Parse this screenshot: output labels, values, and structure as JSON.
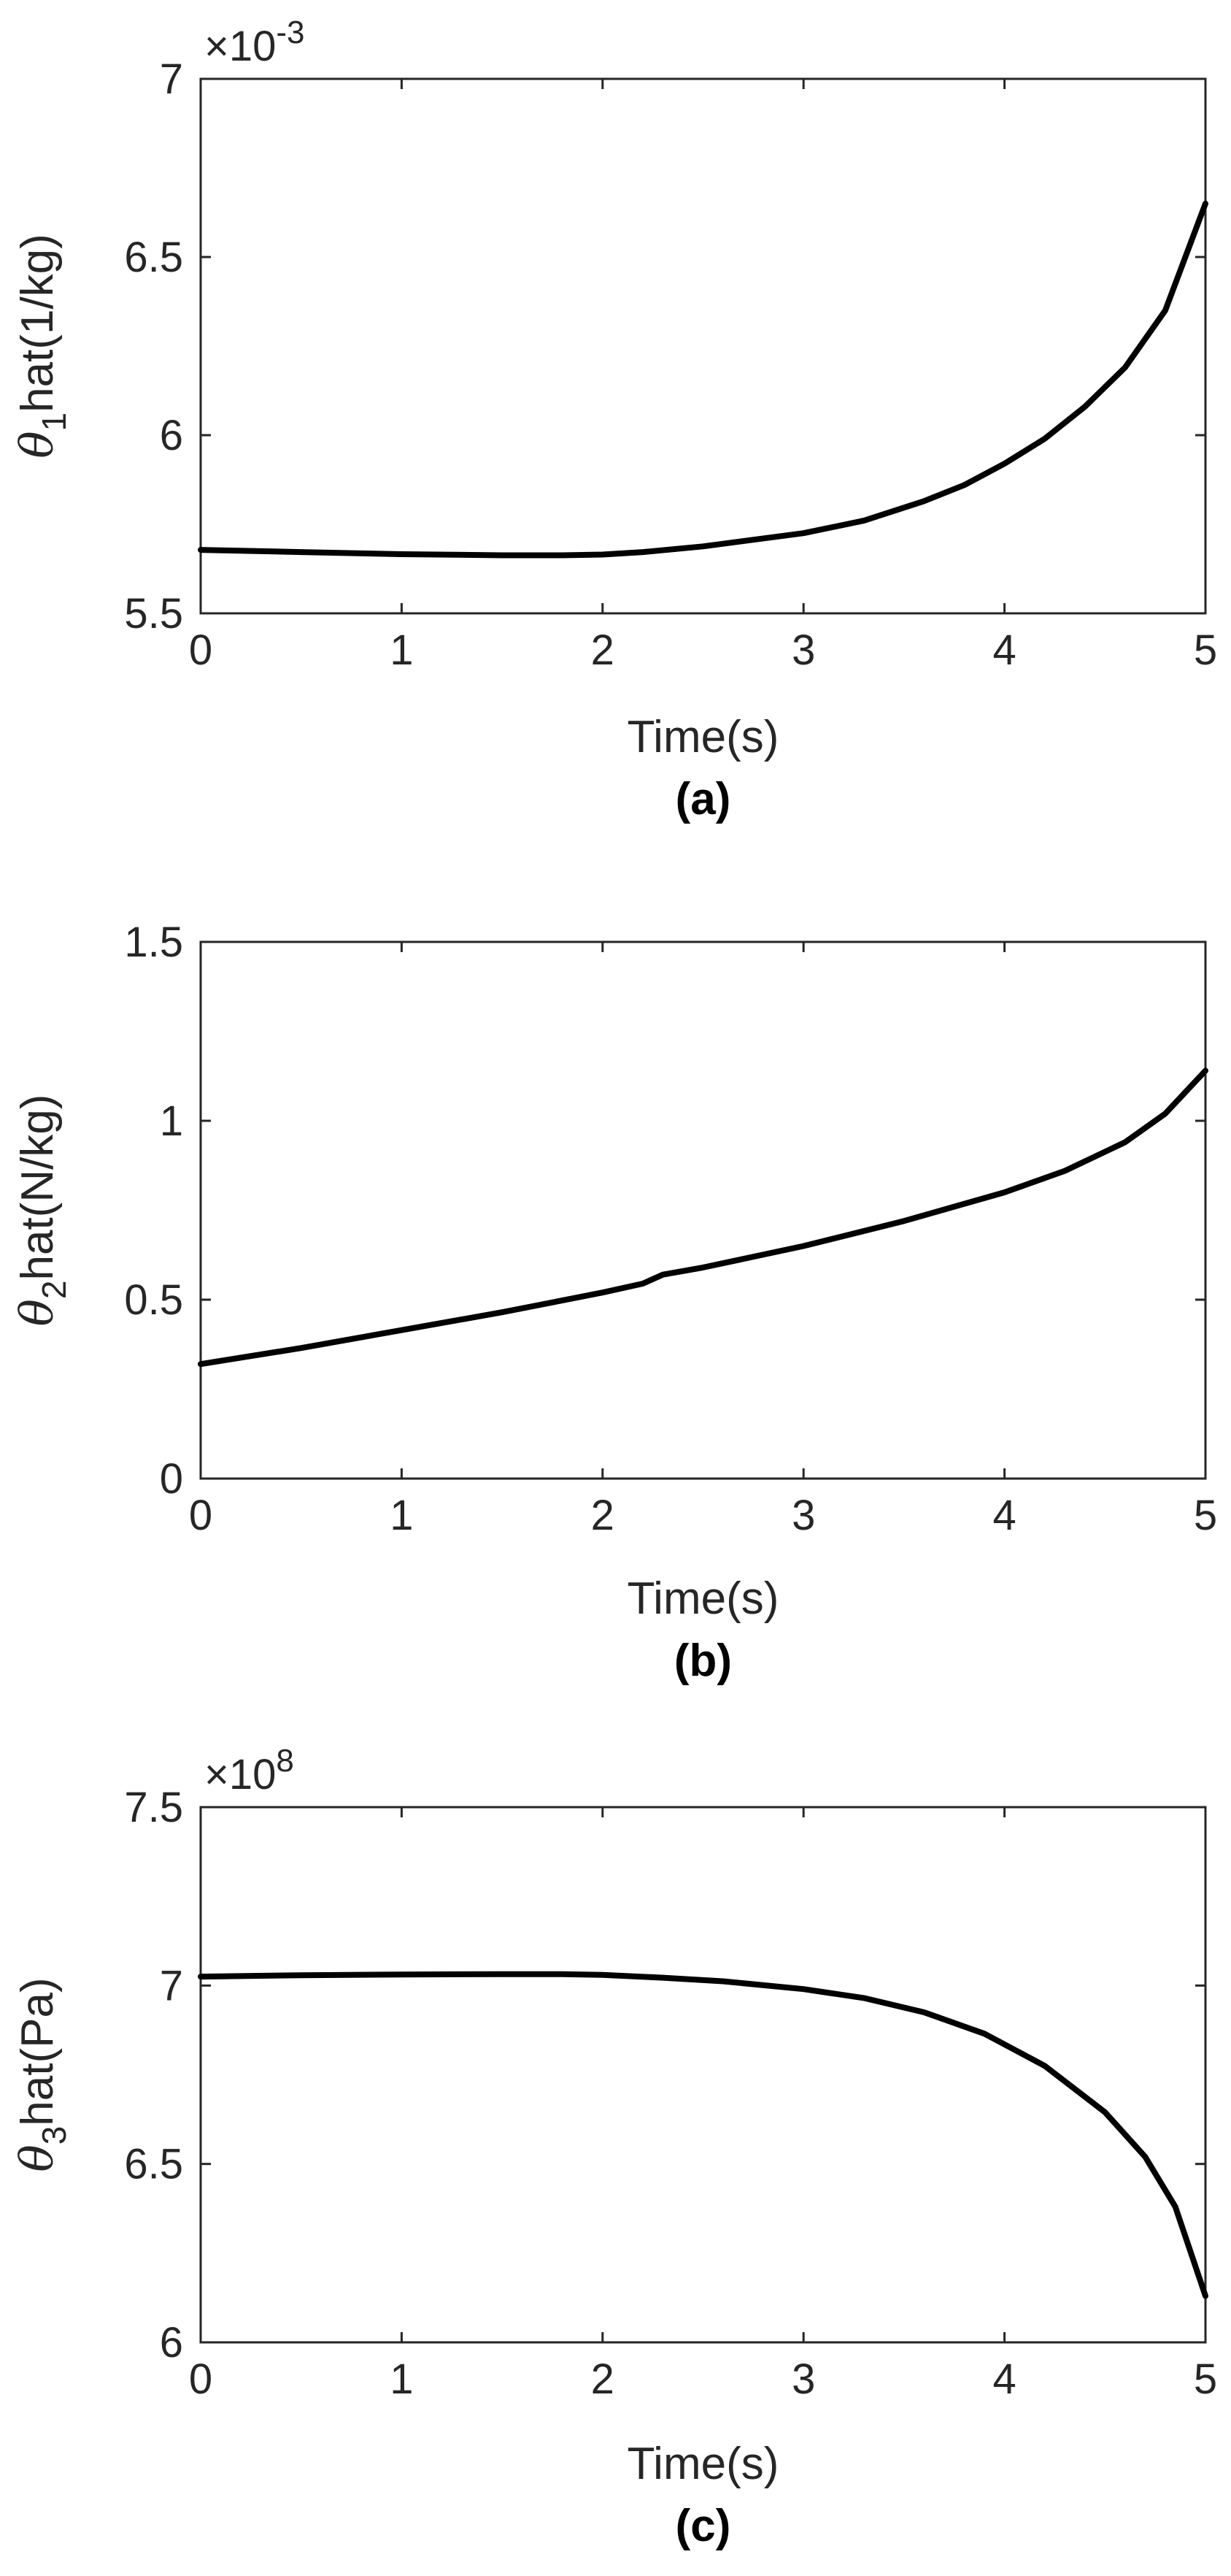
{
  "chart_data": [
    {
      "type": "line",
      "panel_label": "(a)",
      "xlabel": "Time(s)",
      "ylabel_symbol": "θ",
      "ylabel_subscript": "1",
      "ylabel_text": "hat(1/kg)",
      "exponent_prefix": "×10",
      "exponent_power": "-3",
      "xlim": [
        0,
        5
      ],
      "ylim": [
        5.5,
        7
      ],
      "xticks": [
        "0",
        "1",
        "2",
        "3",
        "4",
        "5"
      ],
      "yticks": [
        "5.5",
        "6",
        "6.5",
        "7"
      ],
      "series": [
        {
          "x": [
            0,
            0.5,
            1,
            1.5,
            1.8,
            2,
            2.2,
            2.5,
            3,
            3.3,
            3.6,
            3.8,
            4,
            4.2,
            4.4,
            4.6,
            4.8,
            5
          ],
          "y": [
            5.678,
            5.672,
            5.666,
            5.663,
            5.663,
            5.665,
            5.672,
            5.688,
            5.725,
            5.76,
            5.815,
            5.86,
            5.92,
            5.99,
            6.08,
            6.19,
            6.35,
            6.65
          ]
        }
      ]
    },
    {
      "type": "line",
      "panel_label": "(b)",
      "xlabel": "Time(s)",
      "ylabel_symbol": "θ",
      "ylabel_subscript": "2",
      "ylabel_text": "hat(N/kg)",
      "exponent_prefix": "",
      "exponent_power": "",
      "xlim": [
        0,
        5
      ],
      "ylim": [
        0,
        1.5
      ],
      "xticks": [
        "0",
        "1",
        "2",
        "3",
        "4",
        "5"
      ],
      "yticks": [
        "0",
        "0.5",
        "1",
        "1.5"
      ],
      "series": [
        {
          "x": [
            0,
            0.5,
            1,
            1.5,
            2,
            2.2,
            2.3,
            2.5,
            3,
            3.5,
            4,
            4.3,
            4.6,
            4.8,
            5
          ],
          "y": [
            0.32,
            0.365,
            0.415,
            0.465,
            0.52,
            0.545,
            0.57,
            0.59,
            0.65,
            0.72,
            0.8,
            0.86,
            0.94,
            1.02,
            1.14
          ]
        }
      ]
    },
    {
      "type": "line",
      "panel_label": "(c)",
      "xlabel": "Time(s)",
      "ylabel_symbol": "θ",
      "ylabel_subscript": "3",
      "ylabel_text": "hat(Pa)",
      "exponent_prefix": "×10",
      "exponent_power": "8",
      "xlim": [
        0,
        5
      ],
      "ylim": [
        6,
        7.5
      ],
      "xticks": [
        "0",
        "1",
        "2",
        "3",
        "4",
        "5"
      ],
      "yticks": [
        "6",
        "6.5",
        "7",
        "7.5"
      ],
      "series": [
        {
          "x": [
            0,
            0.5,
            1,
            1.5,
            1.8,
            2,
            2.3,
            2.6,
            3,
            3.3,
            3.6,
            3.9,
            4.2,
            4.5,
            4.7,
            4.85,
            5
          ],
          "y": [
            7.025,
            7.029,
            7.031,
            7.032,
            7.032,
            7.03,
            7.022,
            7.012,
            6.99,
            6.965,
            6.925,
            6.865,
            6.775,
            6.645,
            6.52,
            6.38,
            6.13
          ]
        }
      ]
    }
  ]
}
